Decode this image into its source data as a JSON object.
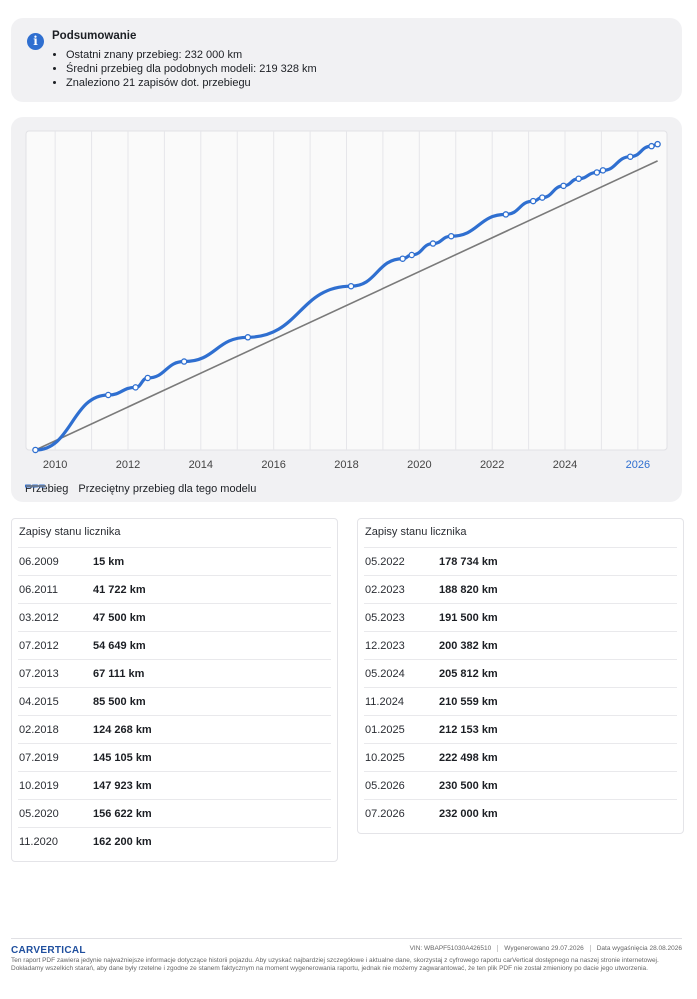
{
  "summary": {
    "title": "Podsumowanie",
    "items": [
      "Ostatni znany przebieg: 232 000 km",
      "Średni przebieg dla podobnych modeli: 219 328 km",
      "Znaleziono 21 zapisów dot. przebiegu"
    ]
  },
  "chart_data": {
    "type": "line",
    "x_ticks": [
      "2010",
      "2012",
      "2014",
      "2016",
      "2018",
      "2020",
      "2022",
      "2024",
      "2026"
    ],
    "x_range": [
      2009.2,
      2026.8
    ],
    "y_range": [
      0,
      242000
    ],
    "grid": true,
    "legend_placement": "bottom-left",
    "highlight_tick": "2026",
    "series": [
      {
        "name": "Przebieg",
        "color": "#2f6fd0",
        "style": "solid-with-dots",
        "points": [
          [
            "2009-06",
            15
          ],
          [
            "2011-06",
            41722
          ],
          [
            "2012-03",
            47500
          ],
          [
            "2012-07",
            54649
          ],
          [
            "2013-07",
            67111
          ],
          [
            "2015-04",
            85500
          ],
          [
            "2018-02",
            124268
          ],
          [
            "2019-07",
            145105
          ],
          [
            "2019-10",
            147923
          ],
          [
            "2020-05",
            156622
          ],
          [
            "2020-11",
            162200
          ],
          [
            "2022-05",
            178734
          ],
          [
            "2023-02",
            188820
          ],
          [
            "2023-05",
            191500
          ],
          [
            "2023-12",
            200382
          ],
          [
            "2024-05",
            205812
          ],
          [
            "2024-11",
            210559
          ],
          [
            "2025-01",
            212153
          ],
          [
            "2025-10",
            222498
          ],
          [
            "2026-05",
            230500
          ],
          [
            "2026-07",
            232000
          ]
        ]
      },
      {
        "name": "Przeciętny przebieg dla tego modelu",
        "color": "#7a7a7a",
        "style": "solid",
        "points": [
          [
            "2009-06",
            0
          ],
          [
            "2026-07",
            219328
          ]
        ]
      }
    ]
  },
  "tables": {
    "left": {
      "title": "Zapisy stanu licznika",
      "rows": [
        {
          "date": "06.2009",
          "value": "15 km"
        },
        {
          "date": "06.2011",
          "value": "41 722 km"
        },
        {
          "date": "03.2012",
          "value": "47 500 km"
        },
        {
          "date": "07.2012",
          "value": "54 649 km"
        },
        {
          "date": "07.2013",
          "value": "67 111 km"
        },
        {
          "date": "04.2015",
          "value": "85 500 km"
        },
        {
          "date": "02.2018",
          "value": "124 268 km"
        },
        {
          "date": "07.2019",
          "value": "145 105 km"
        },
        {
          "date": "10.2019",
          "value": "147 923 km"
        },
        {
          "date": "05.2020",
          "value": "156 622 km"
        },
        {
          "date": "11.2020",
          "value": "162 200 km"
        }
      ]
    },
    "right": {
      "title": "Zapisy stanu licznika",
      "rows": [
        {
          "date": "05.2022",
          "value": "178 734 km"
        },
        {
          "date": "02.2023",
          "value": "188 820 km"
        },
        {
          "date": "05.2023",
          "value": "191 500 km"
        },
        {
          "date": "12.2023",
          "value": "200 382 km"
        },
        {
          "date": "05.2024",
          "value": "205 812 km"
        },
        {
          "date": "11.2024",
          "value": "210 559 km"
        },
        {
          "date": "01.2025",
          "value": "212 153 km"
        },
        {
          "date": "10.2025",
          "value": "222 498 km"
        },
        {
          "date": "05.2026",
          "value": "230 500 km"
        },
        {
          "date": "07.2026",
          "value": "232 000 km"
        }
      ]
    }
  },
  "footer": {
    "brand": "CARVERTICAL",
    "vin": "VIN: WBAPF51030A426510",
    "generated": "Wygenerowano 29.07.2026",
    "expiry": "Data wygaśnięcia 28.08.2026",
    "disclaimer": "Ten raport PDF zawiera jedynie najważniejsze informacje dotyczące historii pojazdu. Aby uzyskać najbardziej szczegółowe i aktualne dane, skorzystaj z cyfrowego raportu carVertical dostępnego na naszej stronie internetowej. Dokładamy wszelkich starań, aby dane były rzetelne i zgodne ze stanem faktycznym na moment wygenerowania raportu, jednak nie możemy zagwarantować, że ten plik PDF nie został zmieniony po dacie jego utworzenia."
  }
}
